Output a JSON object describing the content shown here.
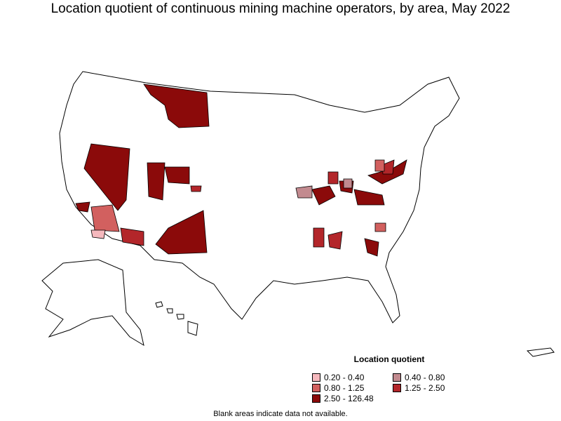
{
  "title": "Location quotient of continuous mining machine operators, by area, May 2022",
  "legend": {
    "title": "Location quotient",
    "items": [
      {
        "label": "0.20 - 0.40",
        "color": "#f5b8bd"
      },
      {
        "label": "0.40 - 0.80",
        "color": "#c28a8f"
      },
      {
        "label": "0.80 - 1.25",
        "color": "#d2605f"
      },
      {
        "label": "1.25 - 2.50",
        "color": "#b3262a"
      },
      {
        "label": "2.50 - 126.48",
        "color": "#8b0a0a"
      }
    ]
  },
  "footnote": "Blank areas indicate data not available.",
  "colors": {
    "no_data": "#ffffff",
    "border": "#000000"
  }
}
